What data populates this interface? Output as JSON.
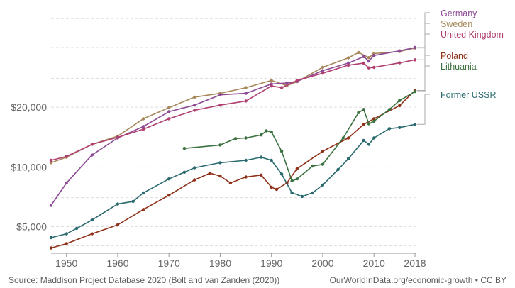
{
  "chart_data": {
    "type": "line",
    "title": "",
    "xlabel": "",
    "ylabel": "",
    "y_scale": "log",
    "xlim": [
      1947,
      2018
    ],
    "ylim": [
      3700,
      64000
    ],
    "x_ticks": [
      1950,
      1960,
      1970,
      1980,
      1990,
      2000,
      2010,
      2018
    ],
    "x_tick_labels": [
      "1950",
      "1960",
      "1970",
      "1980",
      "1990",
      "2000",
      "2010",
      "2018"
    ],
    "y_ticks": [
      5000,
      10000,
      20000
    ],
    "y_tick_labels": [
      "$5,000",
      "$10,000",
      "$20,000"
    ],
    "grid": "horizontal dashed",
    "legend": "right end labels",
    "series": [
      {
        "name": "Sweden",
        "color": "#a6875a",
        "x": [
          1947,
          1950,
          1955,
          1960,
          1965,
          1970,
          1975,
          1980,
          1985,
          1990,
          1993,
          1995,
          2000,
          2005,
          2007,
          2009,
          2010,
          2015,
          2018
        ],
        "y": [
          10500,
          11200,
          13000,
          14300,
          17500,
          19900,
          22500,
          23500,
          25100,
          27300,
          25700,
          26900,
          31800,
          35500,
          37800,
          35600,
          37300,
          38200,
          39800
        ]
      },
      {
        "name": "Germany",
        "color": "#8c4a94",
        "x": [
          1947,
          1950,
          1955,
          1960,
          1965,
          1970,
          1975,
          1980,
          1985,
          1990,
          1993,
          1995,
          2000,
          2005,
          2008,
          2009,
          2010,
          2015,
          2018
        ],
        "y": [
          6400,
          8300,
          11500,
          14000,
          16000,
          19000,
          20500,
          23100,
          23500,
          26200,
          26500,
          27000,
          30600,
          33400,
          36000,
          34200,
          36500,
          38500,
          40000
        ]
      },
      {
        "name": "United Kingdom",
        "color": "#b04071",
        "x": [
          1947,
          1950,
          1955,
          1960,
          1965,
          1970,
          1975,
          1980,
          1985,
          1990,
          1992,
          1995,
          2000,
          2005,
          2008,
          2009,
          2010,
          2015,
          2018
        ],
        "y": [
          10800,
          11300,
          13000,
          14100,
          15500,
          17500,
          19300,
          20500,
          21500,
          25600,
          25100,
          27300,
          29700,
          32600,
          33400,
          31600,
          31800,
          33500,
          34700
        ]
      },
      {
        "name": "Poland",
        "color": "#8f3018",
        "x": [
          1947,
          1950,
          1955,
          1960,
          1965,
          1970,
          1975,
          1978,
          1980,
          1982,
          1985,
          1988,
          1990,
          1991,
          1993,
          1995,
          2000,
          2005,
          2008,
          2010,
          2015,
          2018
        ],
        "y": [
          3900,
          4100,
          4600,
          5100,
          6100,
          7200,
          8600,
          9300,
          9000,
          8300,
          8900,
          9100,
          7900,
          7700,
          8300,
          9800,
          12000,
          14000,
          16400,
          17500,
          20400,
          24300
        ]
      },
      {
        "name": "Lithuania",
        "color": "#3c7140",
        "x": [
          1973,
          1980,
          1983,
          1985,
          1988,
          1989,
          1990,
          1992,
          1994,
          1995,
          1998,
          2000,
          2004,
          2007,
          2008,
          2009,
          2010,
          2013,
          2015,
          2018
        ],
        "y": [
          12400,
          12900,
          13900,
          14000,
          14500,
          15200,
          15000,
          12000,
          8500,
          8700,
          10100,
          10300,
          14000,
          18800,
          19500,
          16500,
          17000,
          19500,
          21600,
          24000
        ]
      },
      {
        "name": "Former USSR",
        "color": "#2a6a6f",
        "x": [
          1947,
          1950,
          1952,
          1955,
          1960,
          1963,
          1965,
          1970,
          1973,
          1975,
          1980,
          1985,
          1988,
          1990,
          1992,
          1994,
          1996,
          1998,
          2000,
          2003,
          2005,
          2008,
          2009,
          2010,
          2013,
          2015,
          2018
        ],
        "y": [
          4400,
          4600,
          4900,
          5400,
          6500,
          6700,
          7400,
          8700,
          9400,
          9900,
          10500,
          10800,
          11200,
          10800,
          9200,
          7400,
          7100,
          7400,
          8100,
          9700,
          11000,
          13600,
          13000,
          14000,
          15600,
          15800,
          16400
        ]
      }
    ],
    "legend_entries": [
      "Germany",
      "Sweden",
      "United Kingdom",
      "Poland",
      "Lithuania",
      "Former USSR"
    ]
  },
  "footer": {
    "source": "Source: Maddison Project Database 2020 (Bolt and van Zanden (2020))",
    "credit": "OurWorldInData.org/economic-growth • CC BY"
  }
}
